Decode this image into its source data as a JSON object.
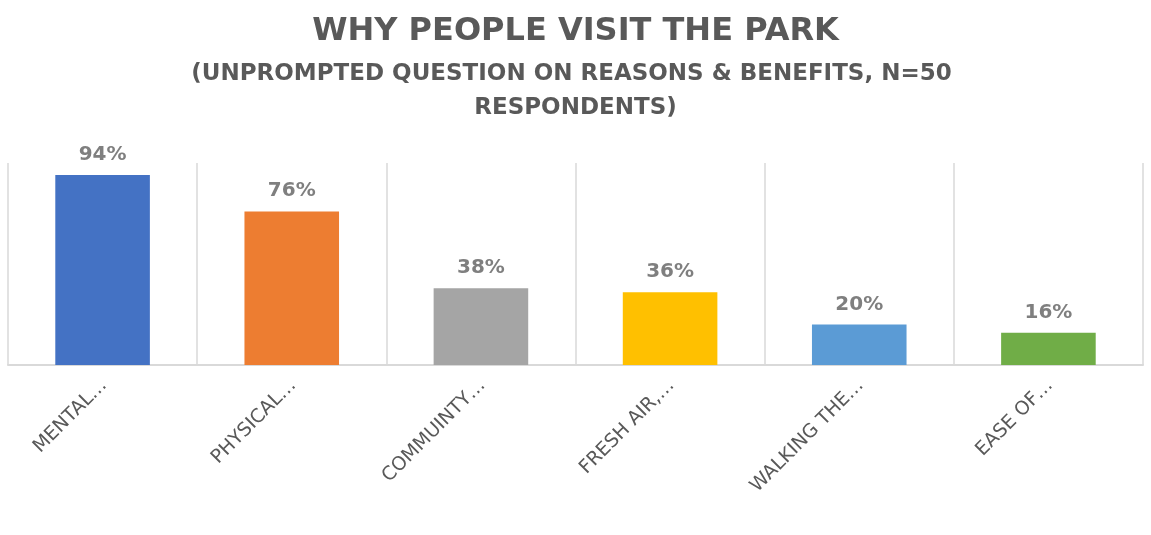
{
  "chart_data": {
    "type": "bar",
    "title": "WHY PEOPLE VISIT THE PARK",
    "subtitle": "(UNPROMPTED QUESTION ON REASONS & BENEFITS, N=50 RESPONDENTS)",
    "categories": [
      "MENTAL…",
      "PHYSICAL…",
      "COMMUINTY…",
      "FRESH AIR,…",
      "WALKING THE…",
      "EASE OF…"
    ],
    "values": [
      94,
      76,
      38,
      36,
      20,
      16
    ],
    "colors": [
      "#4472c4",
      "#ed7d31",
      "#a5a5a5",
      "#ffc000",
      "#5b9bd5",
      "#70ad47"
    ],
    "value_labels": [
      "94%",
      "76%",
      "38%",
      "36%",
      "20%",
      "16%"
    ],
    "grid": "x"
  }
}
